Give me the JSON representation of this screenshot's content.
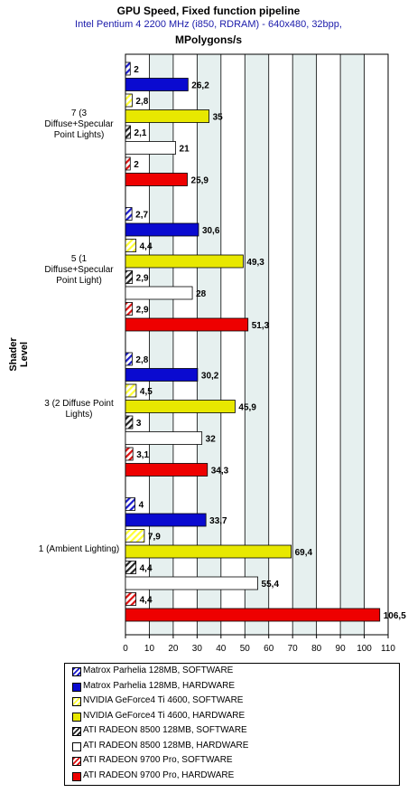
{
  "chart_data": {
    "type": "bar",
    "orientation": "horizontal",
    "title": "GPU Speed,  Fixed function pipeline",
    "subtitle": "Intel Pentium 4 2200 MHz (i850, RDRAM) - 640x480, 32bpp,",
    "unit_label": "MPolygons/s",
    "ylabel": "Shader Level",
    "xlim": [
      0,
      110
    ],
    "x_ticks": [
      "0",
      "10",
      "20",
      "30",
      "40",
      "50",
      "60",
      "70",
      "80",
      "90",
      "100",
      "110"
    ],
    "grid": true,
    "legend_position": "bottom",
    "categories": [
      "7 (3 Diffuse+Specular Point Lights)",
      "5 (1 Diffuse+Specular Point Light)",
      "3 (2 Diffuse Point Lights)",
      "1 (Ambient Lighting)"
    ],
    "series": [
      {
        "name": "Matrox Parhelia 128MB, SOFTWARE",
        "color": "#1a1acc",
        "pattern": "hatch",
        "values": [
          2,
          2.7,
          2.8,
          4
        ],
        "labels": [
          "2",
          "2,7",
          "2,8",
          "4"
        ]
      },
      {
        "name": "Matrox Parhelia 128MB, HARDWARE",
        "color": "#0a0ad0",
        "pattern": "solid",
        "values": [
          26.2,
          30.6,
          30.2,
          33.7
        ],
        "labels": [
          "26,2",
          "30,6",
          "30,2",
          "33,7"
        ]
      },
      {
        "name": "NVIDIA GeForce4 Ti 4600, SOFTWARE",
        "color": "#ffff33",
        "pattern": "hatch",
        "values": [
          2.8,
          4.4,
          4.5,
          7.9
        ],
        "labels": [
          "2,8",
          "4,4",
          "4,5",
          "7,9"
        ]
      },
      {
        "name": "NVIDIA GeForce4 Ti 4600, HARDWARE",
        "color": "#e8e800",
        "pattern": "solid",
        "values": [
          35,
          49.3,
          45.9,
          69.4
        ],
        "labels": [
          "35",
          "49,3",
          "45,9",
          "69,4"
        ]
      },
      {
        "name": "ATI RADEON 8500 128MB, SOFTWARE",
        "color": "#222222",
        "pattern": "hatch",
        "values": [
          2.1,
          2.9,
          3,
          4.4
        ],
        "labels": [
          "2,1",
          "2,9",
          "3",
          "4,4"
        ]
      },
      {
        "name": "ATI RADEON 8500 128MB, HARDWARE",
        "color": "#ffffff",
        "pattern": "solid",
        "values": [
          21,
          28,
          32,
          55.4
        ],
        "labels": [
          "21",
          "28",
          "32",
          "55,4"
        ]
      },
      {
        "name": "ATI RADEON 9700 Pro, SOFTWARE",
        "color": "#dd1111",
        "pattern": "hatch",
        "values": [
          2,
          2.9,
          3.1,
          4.4
        ],
        "labels": [
          "2",
          "2,9",
          "3,1",
          "4,4"
        ]
      },
      {
        "name": "ATI RADEON 9700 Pro, HARDWARE",
        "color": "#ee0000",
        "pattern": "solid",
        "values": [
          25.9,
          51.3,
          34.3,
          106.5
        ],
        "labels": [
          "25,9",
          "51,3",
          "34,3",
          "106,5"
        ]
      }
    ]
  }
}
